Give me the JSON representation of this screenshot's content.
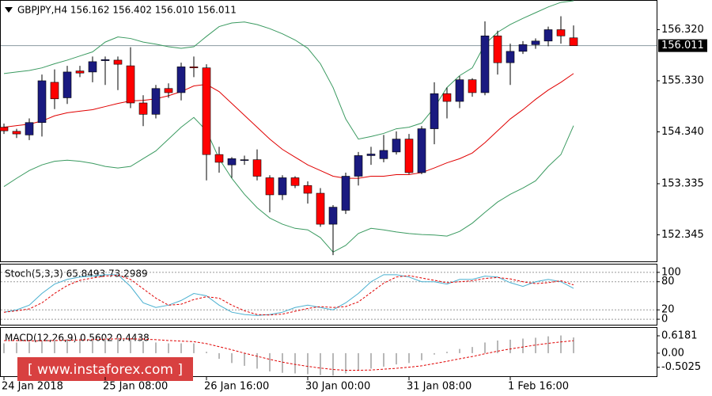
{
  "chart_data": [
    {
      "type": "candlestick",
      "title": "GBPJPY,H4  156.162 156.402 156.010 156.011",
      "categories": [
        "24 Jan 2018",
        null,
        null,
        null,
        null,
        null,
        null,
        null,
        "25 Jan 08:00",
        null,
        null,
        null,
        null,
        null,
        null,
        null,
        "26 Jan 16:00",
        null,
        null,
        null,
        null,
        null,
        null,
        null,
        "30 Jan 00:00",
        null,
        null,
        null,
        null,
        null,
        null,
        null,
        "31 Jan 08:00",
        null,
        null,
        null,
        null,
        null,
        null,
        null,
        "1 Feb 16:00",
        null,
        null,
        null,
        null,
        null
      ],
      "open": [
        154.43,
        154.35,
        154.28,
        154.52,
        155.3,
        155.0,
        155.52,
        155.5,
        155.72,
        155.73,
        155.62,
        154.9,
        154.68,
        155.18,
        155.1,
        155.6,
        155.58,
        153.9,
        153.7,
        153.8,
        153.8,
        153.45,
        153.12,
        153.45,
        153.3,
        153.15,
        152.55,
        152.82,
        153.48,
        153.88,
        153.82,
        153.95,
        154.2,
        153.55,
        154.4,
        155.08,
        154.93,
        155.35,
        155.1,
        156.2,
        155.68,
        155.9,
        156.03,
        156.1,
        156.32,
        156.162
      ],
      "high": [
        154.5,
        154.4,
        154.6,
        155.45,
        155.55,
        155.62,
        155.62,
        155.8,
        155.8,
        155.8,
        155.98,
        155.05,
        155.25,
        155.28,
        155.68,
        155.8,
        155.65,
        154.05,
        153.85,
        153.88,
        154.0,
        153.5,
        153.5,
        153.48,
        153.38,
        153.25,
        152.92,
        153.55,
        153.95,
        154.05,
        154.28,
        154.35,
        154.3,
        154.45,
        155.3,
        155.2,
        155.42,
        155.38,
        156.48,
        156.3,
        156.05,
        156.1,
        156.15,
        156.38,
        156.58,
        156.402
      ],
      "low": [
        154.3,
        154.22,
        154.18,
        154.25,
        154.78,
        154.88,
        155.4,
        155.3,
        155.25,
        155.15,
        154.8,
        154.45,
        154.6,
        155.0,
        154.95,
        155.4,
        153.4,
        153.55,
        153.45,
        153.7,
        153.4,
        152.78,
        153.02,
        153.25,
        152.95,
        152.5,
        151.95,
        152.75,
        153.3,
        153.7,
        153.75,
        153.9,
        153.52,
        153.52,
        154.1,
        154.6,
        154.8,
        155.02,
        155.05,
        155.45,
        155.25,
        155.85,
        155.95,
        156.0,
        156.05,
        156.01
      ],
      "close": [
        154.36,
        154.3,
        154.52,
        155.33,
        154.98,
        155.5,
        155.48,
        155.7,
        155.74,
        155.65,
        154.9,
        154.68,
        155.18,
        155.1,
        155.6,
        155.58,
        153.9,
        153.75,
        153.82,
        153.8,
        153.48,
        153.12,
        153.45,
        153.3,
        153.15,
        152.55,
        152.88,
        153.48,
        153.88,
        153.91,
        153.98,
        154.2,
        153.55,
        154.4,
        155.08,
        154.93,
        155.35,
        155.1,
        156.2,
        155.68,
        155.9,
        156.03,
        156.1,
        156.32,
        156.2,
        156.011
      ],
      "up_color": "#1a1a80",
      "down_color": "#ff0000",
      "lines": [
        {
          "color": "#3a9a60",
          "values": [
            155.47,
            155.5,
            155.53,
            155.58,
            155.66,
            155.73,
            155.81,
            155.89,
            156.08,
            156.18,
            156.15,
            156.08,
            156.04,
            155.99,
            155.96,
            155.99,
            156.19,
            156.38,
            156.45,
            156.47,
            156.42,
            156.34,
            156.24,
            156.12,
            155.96,
            155.66,
            155.2,
            154.59,
            154.2,
            154.25,
            154.31,
            154.4,
            154.43,
            154.51,
            154.81,
            155.2,
            155.43,
            155.58,
            156.04,
            156.27,
            156.42,
            156.54,
            156.65,
            156.76,
            156.85,
            156.88
          ]
        },
        {
          "color": "#3a9a60",
          "values": [
            153.28,
            153.44,
            153.59,
            153.7,
            153.77,
            153.79,
            153.77,
            153.73,
            153.67,
            153.64,
            153.67,
            153.82,
            153.97,
            154.2,
            154.43,
            154.62,
            154.36,
            153.82,
            153.44,
            153.13,
            152.87,
            152.67,
            152.55,
            152.47,
            152.44,
            152.29,
            152.01,
            152.14,
            152.37,
            152.47,
            152.44,
            152.4,
            152.37,
            152.35,
            152.34,
            152.32,
            152.41,
            152.57,
            152.78,
            152.98,
            153.13,
            153.25,
            153.39,
            153.67,
            153.9,
            154.46
          ]
        },
        {
          "color": "#e00000",
          "values": [
            154.43,
            154.46,
            154.49,
            154.55,
            154.65,
            154.71,
            154.74,
            154.77,
            154.83,
            154.89,
            154.94,
            154.95,
            154.98,
            155.04,
            155.12,
            155.23,
            155.26,
            155.12,
            154.89,
            154.66,
            154.43,
            154.2,
            154.0,
            153.85,
            153.7,
            153.59,
            153.48,
            153.44,
            153.44,
            153.48,
            153.48,
            153.51,
            153.51,
            153.55,
            153.64,
            153.74,
            153.82,
            153.93,
            154.13,
            154.36,
            154.59,
            154.77,
            154.97,
            155.15,
            155.3,
            155.47
          ]
        }
      ],
      "ylim": [
        151.83,
        156.88
      ],
      "yticks": [
        {
          "value": 156.32,
          "label": "156.320"
        },
        {
          "value": 155.33,
          "label": "155.330"
        },
        {
          "value": 154.34,
          "label": "154.340"
        },
        153.335,
        152.345
      ]
    },
    {
      "type": "line",
      "title": "Stoch(5,3,3) 65.8493 73.2989",
      "lines": [
        {
          "color": "#4ab0d0",
          "dash": false,
          "values": [
            15,
            20,
            30,
            55,
            75,
            85,
            90,
            92,
            95,
            95,
            70,
            35,
            25,
            30,
            40,
            55,
            50,
            30,
            15,
            10,
            8,
            10,
            15,
            25,
            30,
            25,
            20,
            35,
            55,
            80,
            95,
            95,
            90,
            80,
            80,
            75,
            85,
            85,
            92,
            90,
            78,
            70,
            80,
            85,
            80,
            65.8493
          ]
        },
        {
          "color": "#e00000",
          "dash": true,
          "values": [
            15,
            18,
            22,
            35,
            55,
            72,
            83,
            88,
            92,
            94,
            85,
            65,
            45,
            30,
            32,
            42,
            48,
            45,
            30,
            18,
            10,
            9,
            11,
            17,
            23,
            27,
            25,
            27,
            37,
            57,
            77,
            90,
            93,
            88,
            83,
            78,
            80,
            82,
            87,
            89,
            86,
            80,
            76,
            78,
            82,
            73.2989
          ]
        }
      ],
      "ylim": [
        -11.7,
        116.7
      ],
      "yticks": [
        100,
        80,
        20,
        0
      ]
    },
    {
      "type": "bar",
      "title": "MACD(12,26,9) 0.5602 0.4438",
      "values": [
        0.35,
        0.38,
        0.4,
        0.45,
        0.48,
        0.5,
        0.52,
        0.53,
        0.55,
        0.55,
        0.5,
        0.42,
        0.38,
        0.35,
        0.35,
        0.35,
        0.05,
        -0.2,
        -0.35,
        -0.45,
        -0.55,
        -0.65,
        -0.7,
        -0.72,
        -0.75,
        -0.78,
        -0.8,
        -0.72,
        -0.62,
        -0.55,
        -0.48,
        -0.4,
        -0.35,
        -0.25,
        -0.05,
        0.05,
        0.15,
        0.22,
        0.38,
        0.45,
        0.48,
        0.52,
        0.55,
        0.6,
        0.63,
        0.5602
      ],
      "color": "#b8b8b8",
      "lines": [
        {
          "color": "#e00000",
          "dash": true,
          "values": [
            0.45,
            0.45,
            0.44,
            0.44,
            0.45,
            0.46,
            0.47,
            0.48,
            0.5,
            0.51,
            0.51,
            0.5,
            0.48,
            0.45,
            0.43,
            0.41,
            0.34,
            0.23,
            0.12,
            0.0,
            -0.11,
            -0.22,
            -0.32,
            -0.4,
            -0.47,
            -0.53,
            -0.58,
            -0.61,
            -0.61,
            -0.6,
            -0.57,
            -0.54,
            -0.5,
            -0.45,
            -0.37,
            -0.29,
            -0.2,
            -0.12,
            -0.02,
            0.07,
            0.15,
            0.22,
            0.29,
            0.35,
            0.4,
            0.4438
          ]
        }
      ],
      "ylim": [
        -0.82,
        0.9
      ],
      "yticks": [
        0.6181,
        {
          "value": 0,
          "label": "0.00"
        },
        -0.5025
      ]
    }
  ],
  "watermark": "[  www.instaforex.com ]"
}
